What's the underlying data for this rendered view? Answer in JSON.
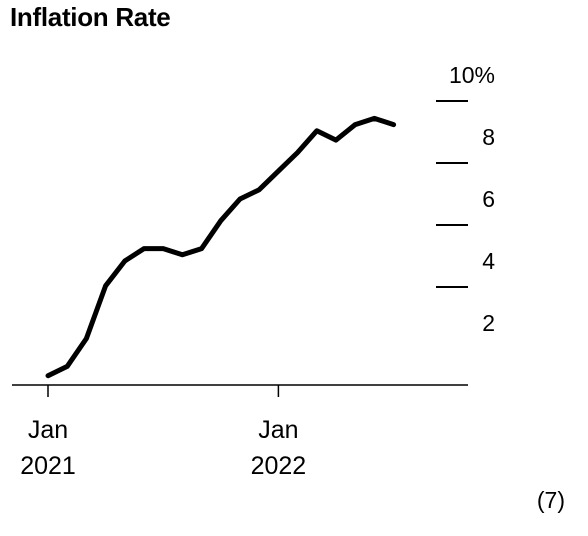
{
  "chart_data": {
    "type": "line",
    "title": "Inflation Rate",
    "x_tick_labels": [
      {
        "month_index": 0,
        "line1": "Jan",
        "line2": "2021"
      },
      {
        "month_index": 12,
        "line1": "Jan",
        "line2": "2022"
      }
    ],
    "y_ticks": [
      {
        "value": 10,
        "label": "10%"
      },
      {
        "value": 8,
        "label": "8"
      },
      {
        "value": 6,
        "label": "6"
      },
      {
        "value": 4,
        "label": "4"
      },
      {
        "value": 2,
        "label": "2"
      }
    ],
    "ylim": [
      0,
      10
    ],
    "x": [
      "2021-01",
      "2021-02",
      "2021-03",
      "2021-04",
      "2021-05",
      "2021-06",
      "2021-07",
      "2021-08",
      "2021-09",
      "2021-10",
      "2021-11",
      "2021-12",
      "2022-01",
      "2022-02",
      "2022-03",
      "2022-04",
      "2022-05",
      "2022-06",
      "2022-07"
    ],
    "series": [
      {
        "values": [
          0.3,
          0.6,
          1.5,
          3.2,
          4.0,
          4.4,
          4.4,
          4.2,
          4.4,
          5.3,
          6.0,
          6.3,
          6.9,
          7.5,
          8.2,
          7.9,
          8.4,
          8.6,
          8.4
        ]
      }
    ],
    "footnote": "(7)",
    "line_color": "#000000",
    "grid": false
  }
}
